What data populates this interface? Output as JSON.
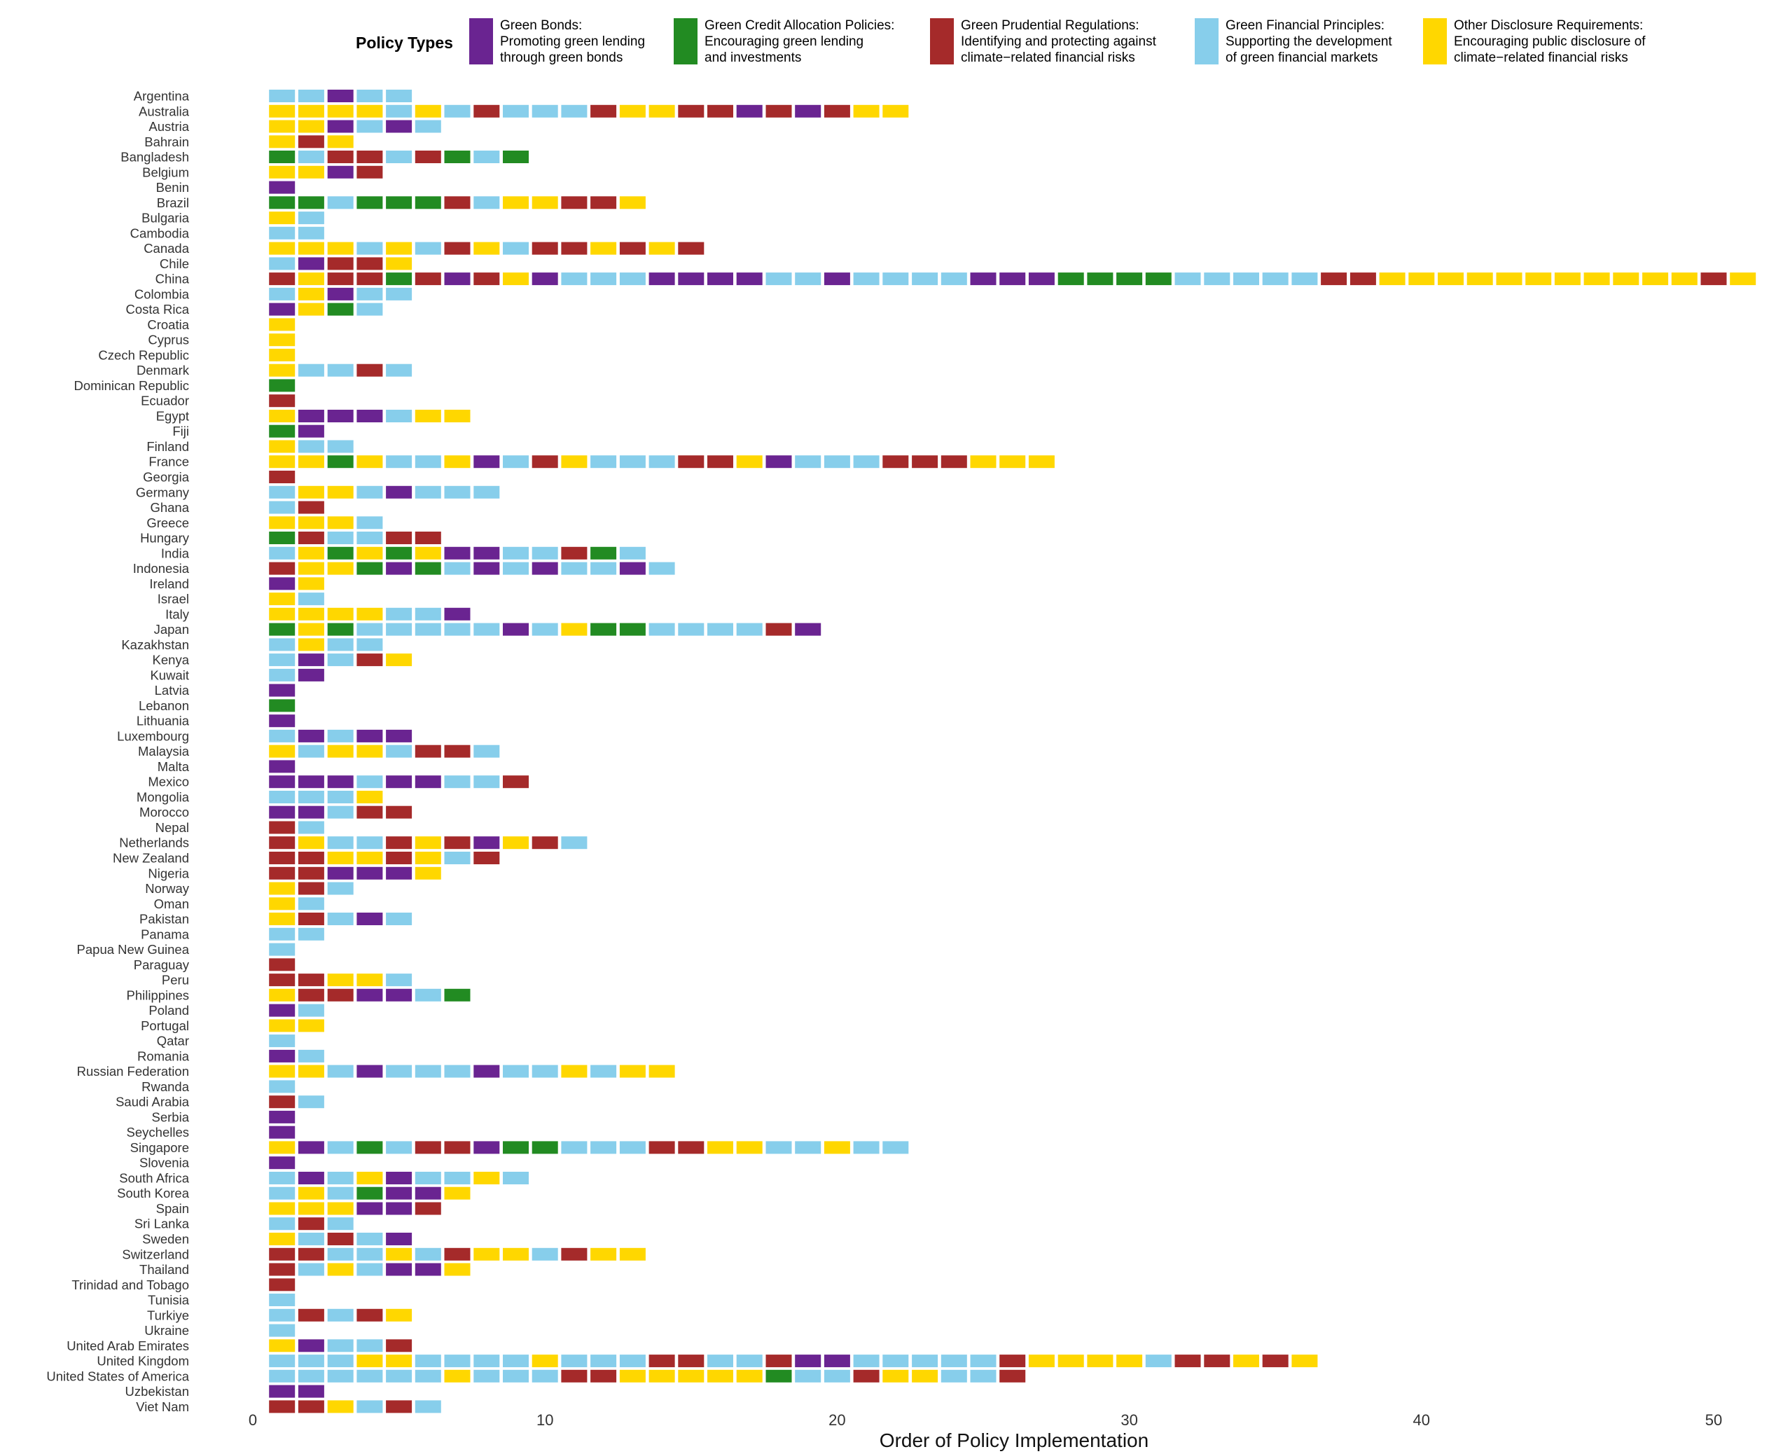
{
  "chart_data": {
    "type": "heatmap",
    "title": "",
    "xlabel": "Order of Policy Implementation",
    "ylabel": "",
    "xlim": [
      0,
      52
    ],
    "x_ticks": [
      0,
      10,
      20,
      30,
      40,
      50
    ],
    "grid": false,
    "legend_placement": "top",
    "legend": {
      "title": "Policy Types",
      "items": [
        {
          "code": "GB",
          "line1": "Green Bonds:",
          "line2": "Promoting green lending",
          "line3": "through green bonds",
          "color": "#6a2491"
        },
        {
          "code": "GC",
          "line1": "Green Credit Allocation Policies:",
          "line2": "Encouraging green lending",
          "line3": "and investments",
          "color": "#228b22"
        },
        {
          "code": "GP",
          "line1": "Green Prudential Regulations:",
          "line2": "Identifying and protecting against",
          "line3": "climate−related financial risks",
          "color": "#a52a2a"
        },
        {
          "code": "GF",
          "line1": "Green Financial Principles:",
          "line2": "Supporting the development",
          "line3": "of green financial markets",
          "color": "#87ceeb"
        },
        {
          "code": "OD",
          "line1": "Other Disclosure Requirements:",
          "line2": "Encouraging public disclosure of",
          "line3": "climate−related financial risks",
          "color": "#ffd700"
        }
      ]
    },
    "series_note_codes": "GB=Green Bonds, GC=Green Credit Allocation Policies, GP=Green Prudential Regulations, GF=Green Financial Principles, OD=Other Disclosure Requirements",
    "countries": [
      {
        "name": "Argentina",
        "policies": [
          "GF",
          "GF",
          "GB",
          "GF",
          "GF"
        ]
      },
      {
        "name": "Australia",
        "policies": [
          "OD",
          "OD",
          "OD",
          "OD",
          "GF",
          "OD",
          "GF",
          "GP",
          "GF",
          "GF",
          "GF",
          "GP",
          "OD",
          "OD",
          "GP",
          "GP",
          "GB",
          "GP",
          "GB",
          "GP",
          "OD",
          "OD"
        ]
      },
      {
        "name": "Austria",
        "policies": [
          "OD",
          "OD",
          "GB",
          "GF",
          "GB",
          "GF"
        ]
      },
      {
        "name": "Bahrain",
        "policies": [
          "OD",
          "GP",
          "OD"
        ]
      },
      {
        "name": "Bangladesh",
        "policies": [
          "GC",
          "GF",
          "GP",
          "GP",
          "GF",
          "GP",
          "GC",
          "GF",
          "GC"
        ]
      },
      {
        "name": "Belgium",
        "policies": [
          "OD",
          "OD",
          "GB",
          "GP"
        ]
      },
      {
        "name": "Benin",
        "policies": [
          "GB"
        ]
      },
      {
        "name": "Brazil",
        "policies": [
          "GC",
          "GC",
          "GF",
          "GC",
          "GC",
          "GC",
          "GP",
          "GF",
          "OD",
          "OD",
          "GP",
          "GP",
          "OD"
        ]
      },
      {
        "name": "Bulgaria",
        "policies": [
          "OD",
          "GF"
        ]
      },
      {
        "name": "Cambodia",
        "policies": [
          "GF",
          "GF"
        ]
      },
      {
        "name": "Canada",
        "policies": [
          "OD",
          "OD",
          "OD",
          "GF",
          "OD",
          "GF",
          "GP",
          "OD",
          "GF",
          "GP",
          "GP",
          "OD",
          "GP",
          "OD",
          "GP"
        ]
      },
      {
        "name": "Chile",
        "policies": [
          "GF",
          "GB",
          "GP",
          "GP",
          "OD"
        ]
      },
      {
        "name": "China",
        "policies": [
          "GP",
          "OD",
          "GP",
          "GP",
          "GC",
          "GP",
          "GB",
          "GP",
          "OD",
          "GB",
          "GF",
          "GF",
          "GF",
          "GB",
          "GB",
          "GB",
          "GB",
          "GF",
          "GF",
          "GB",
          "GF",
          "GF",
          "GF",
          "GF",
          "GB",
          "GB",
          "GB",
          "GC",
          "GC",
          "GC",
          "GC",
          "GF",
          "GF",
          "GF",
          "GF",
          "GF",
          "GP",
          "GP",
          "OD",
          "OD",
          "OD",
          "OD",
          "OD",
          "OD",
          "OD",
          "OD",
          "OD",
          "OD",
          "OD",
          "GP",
          "OD"
        ]
      },
      {
        "name": "Colombia",
        "policies": [
          "GF",
          "OD",
          "GB",
          "GF",
          "GF"
        ]
      },
      {
        "name": "Costa Rica",
        "policies": [
          "GB",
          "OD",
          "GC",
          "GF"
        ]
      },
      {
        "name": "Croatia",
        "policies": [
          "OD"
        ]
      },
      {
        "name": "Cyprus",
        "policies": [
          "OD"
        ]
      },
      {
        "name": "Czech Republic",
        "policies": [
          "OD"
        ]
      },
      {
        "name": "Denmark",
        "policies": [
          "OD",
          "GF",
          "GF",
          "GP",
          "GF"
        ]
      },
      {
        "name": "Dominican Republic",
        "policies": [
          "GC"
        ]
      },
      {
        "name": "Ecuador",
        "policies": [
          "GP"
        ]
      },
      {
        "name": "Egypt",
        "policies": [
          "OD",
          "GB",
          "GB",
          "GB",
          "GF",
          "OD",
          "OD"
        ]
      },
      {
        "name": "Fiji",
        "policies": [
          "GC",
          "GB"
        ]
      },
      {
        "name": "Finland",
        "policies": [
          "OD",
          "GF",
          "GF"
        ]
      },
      {
        "name": "France",
        "policies": [
          "OD",
          "OD",
          "GC",
          "OD",
          "GF",
          "GF",
          "OD",
          "GB",
          "GF",
          "GP",
          "OD",
          "GF",
          "GF",
          "GF",
          "GP",
          "GP",
          "OD",
          "GB",
          "GF",
          "GF",
          "GF",
          "GP",
          "GP",
          "GP",
          "OD",
          "OD",
          "OD"
        ]
      },
      {
        "name": "Georgia",
        "policies": [
          "GP"
        ]
      },
      {
        "name": "Germany",
        "policies": [
          "GF",
          "OD",
          "OD",
          "GF",
          "GB",
          "GF",
          "GF",
          "GF"
        ]
      },
      {
        "name": "Ghana",
        "policies": [
          "GF",
          "GP"
        ]
      },
      {
        "name": "Greece",
        "policies": [
          "OD",
          "OD",
          "OD",
          "GF"
        ]
      },
      {
        "name": "Hungary",
        "policies": [
          "GC",
          "GP",
          "GF",
          "GF",
          "GP",
          "GP"
        ]
      },
      {
        "name": "India",
        "policies": [
          "GF",
          "OD",
          "GC",
          "OD",
          "GC",
          "OD",
          "GB",
          "GB",
          "GF",
          "GF",
          "GP",
          "GC",
          "GF"
        ]
      },
      {
        "name": "Indonesia",
        "policies": [
          "GP",
          "OD",
          "OD",
          "GC",
          "GB",
          "GC",
          "GF",
          "GB",
          "GF",
          "GB",
          "GF",
          "GF",
          "GB",
          "GF"
        ]
      },
      {
        "name": "Ireland",
        "policies": [
          "GB",
          "OD"
        ]
      },
      {
        "name": "Israel",
        "policies": [
          "OD",
          "GF"
        ]
      },
      {
        "name": "Italy",
        "policies": [
          "OD",
          "OD",
          "OD",
          "OD",
          "GF",
          "GF",
          "GB"
        ]
      },
      {
        "name": "Japan",
        "policies": [
          "GC",
          "OD",
          "GC",
          "GF",
          "GF",
          "GF",
          "GF",
          "GF",
          "GB",
          "GF",
          "OD",
          "GC",
          "GC",
          "GF",
          "GF",
          "GF",
          "GF",
          "GP",
          "GB"
        ]
      },
      {
        "name": "Kazakhstan",
        "policies": [
          "GF",
          "OD",
          "GF",
          "GF"
        ]
      },
      {
        "name": "Kenya",
        "policies": [
          "GF",
          "GB",
          "GF",
          "GP",
          "OD"
        ]
      },
      {
        "name": "Kuwait",
        "policies": [
          "GF",
          "GB"
        ]
      },
      {
        "name": "Latvia",
        "policies": [
          "GB"
        ]
      },
      {
        "name": "Lebanon",
        "policies": [
          "GC"
        ]
      },
      {
        "name": "Lithuania",
        "policies": [
          "GB"
        ]
      },
      {
        "name": "Luxembourg",
        "policies": [
          "GF",
          "GB",
          "GF",
          "GB",
          "GB"
        ]
      },
      {
        "name": "Malaysia",
        "policies": [
          "OD",
          "GF",
          "OD",
          "OD",
          "GF",
          "GP",
          "GP",
          "GF"
        ]
      },
      {
        "name": "Malta",
        "policies": [
          "GB"
        ]
      },
      {
        "name": "Mexico",
        "policies": [
          "GB",
          "GB",
          "GB",
          "GF",
          "GB",
          "GB",
          "GF",
          "GF",
          "GP"
        ]
      },
      {
        "name": "Mongolia",
        "policies": [
          "GF",
          "GF",
          "GF",
          "OD"
        ]
      },
      {
        "name": "Morocco",
        "policies": [
          "GB",
          "GB",
          "GF",
          "GP",
          "GP"
        ]
      },
      {
        "name": "Nepal",
        "policies": [
          "GP",
          "GF"
        ]
      },
      {
        "name": "Netherlands",
        "policies": [
          "GP",
          "OD",
          "GF",
          "GF",
          "GP",
          "OD",
          "GP",
          "GB",
          "OD",
          "GP",
          "GF"
        ]
      },
      {
        "name": "New Zealand",
        "policies": [
          "GP",
          "GP",
          "OD",
          "OD",
          "GP",
          "OD",
          "GF",
          "GP"
        ]
      },
      {
        "name": "Nigeria",
        "policies": [
          "GP",
          "GP",
          "GB",
          "GB",
          "GB",
          "OD"
        ]
      },
      {
        "name": "Norway",
        "policies": [
          "OD",
          "GP",
          "GF"
        ]
      },
      {
        "name": "Oman",
        "policies": [
          "OD",
          "GF"
        ]
      },
      {
        "name": "Pakistan",
        "policies": [
          "OD",
          "GP",
          "GF",
          "GB",
          "GF"
        ]
      },
      {
        "name": "Panama",
        "policies": [
          "GF",
          "GF"
        ]
      },
      {
        "name": "Papua New Guinea",
        "policies": [
          "GF"
        ]
      },
      {
        "name": "Paraguay",
        "policies": [
          "GP"
        ]
      },
      {
        "name": "Peru",
        "policies": [
          "GP",
          "GP",
          "OD",
          "OD",
          "GF"
        ]
      },
      {
        "name": "Philippines",
        "policies": [
          "OD",
          "GP",
          "GP",
          "GB",
          "GB",
          "GF",
          "GC"
        ]
      },
      {
        "name": "Poland",
        "policies": [
          "GB",
          "GF"
        ]
      },
      {
        "name": "Portugal",
        "policies": [
          "OD",
          "OD"
        ]
      },
      {
        "name": "Qatar",
        "policies": [
          "GF"
        ]
      },
      {
        "name": "Romania",
        "policies": [
          "GB",
          "GF"
        ]
      },
      {
        "name": "Russian Federation",
        "policies": [
          "OD",
          "OD",
          "GF",
          "GB",
          "GF",
          "GF",
          "GF",
          "GB",
          "GF",
          "GF",
          "OD",
          "GF",
          "OD",
          "OD"
        ]
      },
      {
        "name": "Rwanda",
        "policies": [
          "GF"
        ]
      },
      {
        "name": "Saudi Arabia",
        "policies": [
          "GP",
          "GF"
        ]
      },
      {
        "name": "Serbia",
        "policies": [
          "GB"
        ]
      },
      {
        "name": "Seychelles",
        "policies": [
          "GB"
        ]
      },
      {
        "name": "Singapore",
        "policies": [
          "OD",
          "GB",
          "GF",
          "GC",
          "GF",
          "GP",
          "GP",
          "GB",
          "GC",
          "GC",
          "GF",
          "GF",
          "GF",
          "GP",
          "GP",
          "OD",
          "OD",
          "GF",
          "GF",
          "OD",
          "GF",
          "GF"
        ]
      },
      {
        "name": "Slovenia",
        "policies": [
          "GB"
        ]
      },
      {
        "name": "South Africa",
        "policies": [
          "GF",
          "GB",
          "GF",
          "OD",
          "GB",
          "GF",
          "GF",
          "OD",
          "GF"
        ]
      },
      {
        "name": "South Korea",
        "policies": [
          "GF",
          "OD",
          "GF",
          "GC",
          "GB",
          "GB",
          "OD"
        ]
      },
      {
        "name": "Spain",
        "policies": [
          "OD",
          "OD",
          "OD",
          "GB",
          "GB",
          "GP"
        ]
      },
      {
        "name": "Sri Lanka",
        "policies": [
          "GF",
          "GP",
          "GF"
        ]
      },
      {
        "name": "Sweden",
        "policies": [
          "OD",
          "GF",
          "GP",
          "GF",
          "GB"
        ]
      },
      {
        "name": "Switzerland",
        "policies": [
          "GP",
          "GP",
          "GF",
          "GF",
          "OD",
          "GF",
          "GP",
          "OD",
          "OD",
          "GF",
          "GP",
          "OD",
          "OD"
        ]
      },
      {
        "name": "Thailand",
        "policies": [
          "GP",
          "GF",
          "OD",
          "GF",
          "GB",
          "GB",
          "OD"
        ]
      },
      {
        "name": "Trinidad and Tobago",
        "policies": [
          "GP"
        ]
      },
      {
        "name": "Tunisia",
        "policies": [
          "GF"
        ]
      },
      {
        "name": "Turkiye",
        "policies": [
          "GF",
          "GP",
          "GF",
          "GP",
          "OD"
        ]
      },
      {
        "name": "Ukraine",
        "policies": [
          "GF"
        ]
      },
      {
        "name": "United Arab Emirates",
        "policies": [
          "OD",
          "GB",
          "GF",
          "GF",
          "GP"
        ]
      },
      {
        "name": "United Kingdom",
        "policies": [
          "GF",
          "GF",
          "GF",
          "OD",
          "OD",
          "GF",
          "GF",
          "GF",
          "GF",
          "OD",
          "GF",
          "GF",
          "GF",
          "GP",
          "GP",
          "GF",
          "GF",
          "GP",
          "GB",
          "GB",
          "GF",
          "GF",
          "GF",
          "GF",
          "GF",
          "GP",
          "OD",
          "OD",
          "OD",
          "OD",
          "GF",
          "GP",
          "GP",
          "OD",
          "GP",
          "OD"
        ]
      },
      {
        "name": "United States of America",
        "policies": [
          "GF",
          "GF",
          "GF",
          "GF",
          "GF",
          "GF",
          "OD",
          "GF",
          "GF",
          "GF",
          "GP",
          "GP",
          "OD",
          "OD",
          "OD",
          "OD",
          "OD",
          "GC",
          "GF",
          "GF",
          "GP",
          "OD",
          "OD",
          "GF",
          "GF",
          "GP"
        ]
      },
      {
        "name": "Uzbekistan",
        "policies": [
          "GB",
          "GB"
        ]
      },
      {
        "name": "Viet Nam",
        "policies": [
          "GP",
          "GP",
          "OD",
          "GF",
          "GP",
          "GF"
        ]
      }
    ]
  }
}
